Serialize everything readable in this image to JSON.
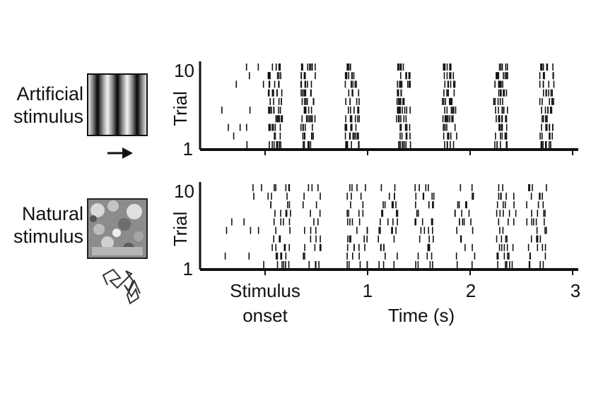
{
  "stimuli": [
    {
      "label_line1": "Artificial",
      "label_line2": "stimulus",
      "thumbnail": "grating",
      "motion_icon": "arrow-right-icon"
    },
    {
      "label_line1": "Natural",
      "label_line2": "stimulus",
      "thumbnail": "natural-scene",
      "motion_icon": "random-walk-icon"
    }
  ],
  "chart_data": [
    {
      "type": "raster",
      "ylabel": "Trial",
      "ytick_labels": [
        "10",
        "1"
      ],
      "trials": 10,
      "xlim": [
        -0.5,
        3
      ],
      "spike_bursts_s": [
        0.1,
        0.42,
        0.85,
        1.35,
        1.8,
        2.3,
        2.75
      ],
      "spontaneous_spikes_s": [
        -0.28,
        -0.22,
        -0.1,
        -0.02
      ]
    },
    {
      "type": "raster",
      "ylabel": "Trial",
      "ytick_labels": [
        "10",
        "1"
      ],
      "trials": 10,
      "xlim": [
        -0.5,
        3
      ],
      "spike_bursts_s": [
        0.15,
        0.45,
        0.9,
        1.2,
        1.55,
        1.95,
        2.35,
        2.65
      ],
      "spontaneous_spikes_s": [
        -0.3,
        -0.2,
        -0.1,
        0.0
      ]
    }
  ],
  "x_axis": {
    "stim_onset_line1": "Stimulus",
    "stim_onset_line2": "onset",
    "tick_labels": [
      "1",
      "2",
      "3"
    ],
    "xlabel": "Time (s)"
  }
}
